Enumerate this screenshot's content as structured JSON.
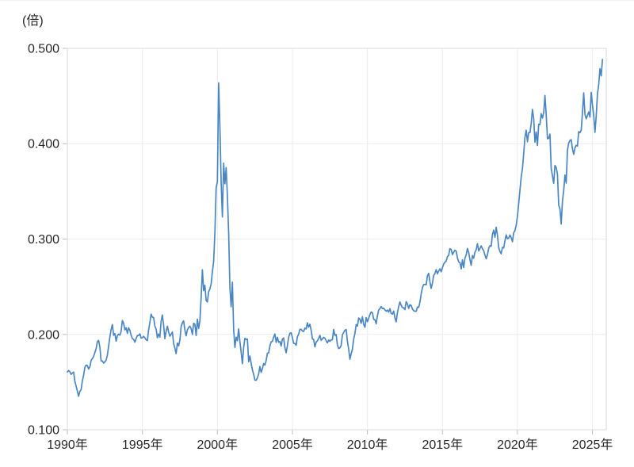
{
  "chart_data": {
    "type": "line",
    "title": "",
    "unit_label": "(倍)",
    "ylabel": "",
    "xlabel": "",
    "ylim": [
      0.1,
      0.5
    ],
    "xlim_years": [
      1990,
      2025.92
    ],
    "grid": true,
    "legend": "none",
    "line_color": "#4a86c4",
    "grid_color": "#ececec",
    "border_color": "#d9d9d9",
    "tick_color": "#bdbdbd",
    "text_color": "#262626",
    "y_ticks": [
      {
        "label": "0.100",
        "value": 0.1
      },
      {
        "label": "0.200",
        "value": 0.2
      },
      {
        "label": "0.300",
        "value": 0.3
      },
      {
        "label": "0.400",
        "value": 0.4
      },
      {
        "label": "0.500",
        "value": 0.5
      }
    ],
    "x_ticks": [
      {
        "label": "1990年",
        "year": 1990
      },
      {
        "label": "1995年",
        "year": 1995
      },
      {
        "label": "2000年",
        "year": 2000
      },
      {
        "label": "2005年",
        "year": 2005
      },
      {
        "label": "2010年",
        "year": 2010
      },
      {
        "label": "2015年",
        "year": 2015
      },
      {
        "label": "2020年",
        "year": 2020
      },
      {
        "label": "2025年",
        "year": 2025
      }
    ],
    "frequency": "monthly",
    "x_start_year": 1990,
    "x_start_month": 1,
    "x_end_year": 2025,
    "x_end_month": 9,
    "values": [
      0.1605,
      0.1621,
      0.1609,
      0.1581,
      0.1595,
      0.1605,
      0.1509,
      0.1458,
      0.1405,
      0.1351,
      0.1403,
      0.142,
      0.1514,
      0.1572,
      0.1655,
      0.1678,
      0.1672,
      0.1637,
      0.166,
      0.1727,
      0.1746,
      0.1769,
      0.181,
      0.185,
      0.1924,
      0.1937,
      0.1866,
      0.1721,
      0.1722,
      0.1699,
      0.1712,
      0.1729,
      0.1782,
      0.1875,
      0.1973,
      0.2051,
      0.2103,
      0.199,
      0.2009,
      0.1929,
      0.1988,
      0.2002,
      0.1992,
      0.2032,
      0.2146,
      0.2116,
      0.2047,
      0.207,
      0.2011,
      0.2069,
      0.2043,
      0.1991,
      0.1956,
      0.1948,
      0.1918,
      0.1958,
      0.1988,
      0.1988,
      0.2006,
      0.1961,
      0.1964,
      0.198,
      0.1965,
      0.1942,
      0.1935,
      0.2048,
      0.2126,
      0.2212,
      0.218,
      0.2178,
      0.2087,
      0.2056,
      0.1965,
      0.2005,
      0.1971,
      0.2139,
      0.2203,
      0.2096,
      0.1955,
      0.2033,
      0.2086,
      0.2025,
      0.1981,
      0.2002,
      0.2025,
      0.1903,
      0.1856,
      0.1798,
      0.191,
      0.188,
      0.1939,
      0.2082,
      0.2122,
      0.2142,
      0.2046,
      0.1985,
      0.2048,
      0.2072,
      0.2086,
      0.2061,
      0.1999,
      0.2117,
      0.2107,
      0.1988,
      0.216,
      0.2061,
      0.2139,
      0.2389,
      0.2678,
      0.2459,
      0.2515,
      0.2357,
      0.234,
      0.2448,
      0.2476,
      0.2529,
      0.2657,
      0.2764,
      0.3067,
      0.3539,
      0.3601,
      0.4638,
      0.4187,
      0.3597,
      0.3232,
      0.3796,
      0.358,
      0.375,
      0.3448,
      0.3072,
      0.2495,
      0.229,
      0.2547,
      0.205,
      0.1863,
      0.1971,
      0.1934,
      0.2058,
      0.1926,
      0.1814,
      0.1693,
      0.1862,
      0.1959,
      0.1946,
      0.195,
      0.1713,
      0.1774,
      0.1697,
      0.1628,
      0.1583,
      0.152,
      0.1518,
      0.1544,
      0.1584,
      0.1663,
      0.1601,
      0.164,
      0.1694,
      0.1678,
      0.1726,
      0.1803,
      0.1806,
      0.1879,
      0.1922,
      0.1927,
      0.1971,
      0.2004,
      0.1916,
      0.197,
      0.1918,
      0.1925,
      0.1878,
      0.195,
      0.1963,
      0.1861,
      0.1807,
      0.1882,
      0.197,
      0.2011,
      0.2017,
      0.1966,
      0.1906,
      0.1904,
      0.1886,
      0.1976,
      0.2002,
      0.2053,
      0.2053,
      0.2036,
      0.2031,
      0.2066,
      0.2057,
      0.2122,
      0.2075,
      0.2106,
      0.2044,
      0.1951,
      0.1948,
      0.1869,
      0.1919,
      0.1933,
      0.1959,
      0.199,
      0.1938,
      0.1952,
      0.1969,
      0.196,
      0.1933,
      0.1911,
      0.1941,
      0.1927,
      0.1943,
      0.1944,
      0.2052,
      0.199,
      0.1999,
      0.1889,
      0.1852,
      0.1859,
      0.1882,
      0.1996,
      0.202,
      0.2044,
      0.2051,
      0.1928,
      0.1846,
      0.174,
      0.1797,
      0.1845,
      0.1951,
      0.2009,
      0.2102,
      0.2087,
      0.2172,
      0.2158,
      0.2116,
      0.2185,
      0.2105,
      0.2074,
      0.2176,
      0.2133,
      0.2168,
      0.2209,
      0.2235,
      0.2227,
      0.2158,
      0.2154,
      0.2111,
      0.2196,
      0.2255,
      0.227,
      0.2291,
      0.2271,
      0.2276,
      0.2257,
      0.2243,
      0.2255,
      0.2234,
      0.227,
      0.2221,
      0.2213,
      0.2245,
      0.2175,
      0.2132,
      0.2228,
      0.2291,
      0.234,
      0.2305,
      0.2281,
      0.2279,
      0.226,
      0.2343,
      0.2319,
      0.2273,
      0.2311,
      0.2304,
      0.2267,
      0.2248,
      0.2242,
      0.2243,
      0.2286,
      0.2283,
      0.2339,
      0.2424,
      0.2492,
      0.2522,
      0.2524,
      0.252,
      0.2614,
      0.264,
      0.2551,
      0.2482,
      0.2538,
      0.262,
      0.2638,
      0.2679,
      0.2636,
      0.2663,
      0.2688,
      0.2657,
      0.27,
      0.2738,
      0.2757,
      0.277,
      0.2815,
      0.283,
      0.2899,
      0.289,
      0.2837,
      0.2861,
      0.2883,
      0.2873,
      0.2802,
      0.276,
      0.2754,
      0.2687,
      0.2782,
      0.2701,
      0.28,
      0.2833,
      0.2901,
      0.286,
      0.2784,
      0.2724,
      0.2827,
      0.2799,
      0.2861,
      0.2888,
      0.2951,
      0.2876,
      0.29,
      0.2929,
      0.2899,
      0.2878,
      0.2832,
      0.2793,
      0.2834,
      0.2906,
      0.293,
      0.2924,
      0.3048,
      0.3094,
      0.3019,
      0.3124,
      0.3041,
      0.2909,
      0.287,
      0.2845,
      0.2913,
      0.2907,
      0.2981,
      0.3044,
      0.3003,
      0.301,
      0.3043,
      0.3016,
      0.2972,
      0.3066,
      0.3089,
      0.3144,
      0.3239,
      0.3372,
      0.3513,
      0.3651,
      0.3739,
      0.3897,
      0.4066,
      0.4142,
      0.402,
      0.4117,
      0.4116,
      0.4211,
      0.436,
      0.4265,
      0.4016,
      0.4122,
      0.3982,
      0.4204,
      0.42,
      0.4315,
      0.4269,
      0.4327,
      0.4506,
      0.4305,
      0.4053,
      0.4057,
      0.4101,
      0.3741,
      0.3662,
      0.3584,
      0.3772,
      0.375,
      0.3682,
      0.3357,
      0.3315,
      0.3158,
      0.3399,
      0.3508,
      0.3673,
      0.3586,
      0.3931,
      0.4007,
      0.4034,
      0.4042,
      0.3945,
      0.3888,
      0.3957,
      0.3983,
      0.3975,
      0.4127,
      0.4115,
      0.4141,
      0.4326,
      0.4533,
      0.4309,
      0.4262,
      0.4297,
      0.4333,
      0.4279,
      0.4539,
      0.4406,
      0.4299,
      0.4119,
      0.429,
      0.4522,
      0.462,
      0.4786,
      0.4711,
      0.4884
    ]
  }
}
